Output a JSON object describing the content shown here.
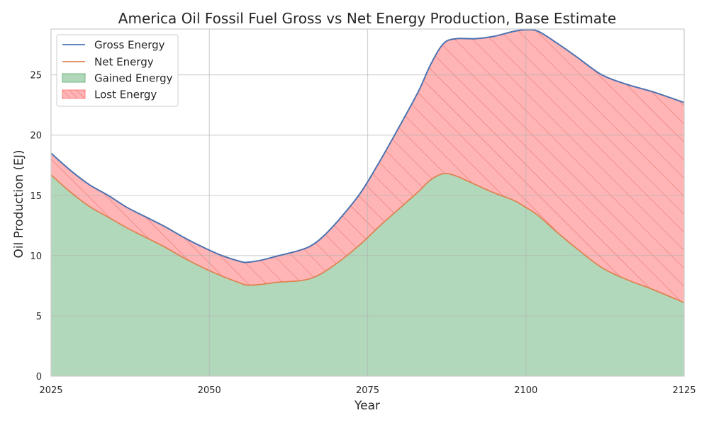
{
  "chart_data": {
    "type": "area",
    "title": "America Oil Fossil Fuel Gross vs Net Energy Production, Base Estimate",
    "xlabel": "Year",
    "ylabel": "Oil Production (EJ)",
    "xlim": [
      2025,
      2125
    ],
    "ylim": [
      0,
      28.8
    ],
    "xticks": [
      2025,
      2050,
      2075,
      2100,
      2125
    ],
    "yticks": [
      0,
      5,
      10,
      15,
      20,
      25
    ],
    "grid": true,
    "legend_position": "top-left",
    "x": [
      2025,
      2028,
      2031,
      2034,
      2037,
      2040,
      2043,
      2046,
      2049,
      2052,
      2055,
      2056,
      2058,
      2061,
      2064,
      2066,
      2068,
      2071,
      2074,
      2077,
      2080,
      2083,
      2085,
      2087,
      2089,
      2092,
      2095,
      2098,
      2100,
      2102,
      2105,
      2108,
      2112,
      2116,
      2120,
      2125
    ],
    "series": [
      {
        "name": "Gross Energy",
        "color": "#4c72b0",
        "values": [
          18.5,
          17.1,
          15.9,
          15.0,
          14.0,
          13.2,
          12.4,
          11.5,
          10.7,
          10.0,
          9.5,
          9.45,
          9.6,
          10.0,
          10.4,
          10.8,
          11.6,
          13.3,
          15.3,
          17.9,
          20.7,
          23.6,
          25.9,
          27.6,
          28.0,
          28.0,
          28.2,
          28.6,
          28.75,
          28.6,
          27.6,
          26.5,
          25.0,
          24.2,
          23.6,
          22.7
        ]
      },
      {
        "name": "Net Energy",
        "color": "#dd8452",
        "values": [
          16.7,
          15.3,
          14.1,
          13.2,
          12.3,
          11.5,
          10.7,
          9.8,
          9.0,
          8.3,
          7.7,
          7.55,
          7.6,
          7.8,
          7.9,
          8.1,
          8.6,
          9.7,
          11.0,
          12.5,
          13.9,
          15.3,
          16.3,
          16.8,
          16.6,
          15.9,
          15.2,
          14.6,
          14.0,
          13.3,
          11.9,
          10.6,
          9.0,
          8.0,
          7.2,
          6.1
        ]
      }
    ],
    "fills": [
      {
        "name": "Gained Energy",
        "color": "#55a868",
        "opacity": 0.45,
        "between": "zero-net"
      },
      {
        "name": "Lost Energy",
        "color": "#ff6b6b",
        "opacity": 0.5,
        "hatch": "diagonal",
        "between": "net-gross"
      }
    ]
  }
}
